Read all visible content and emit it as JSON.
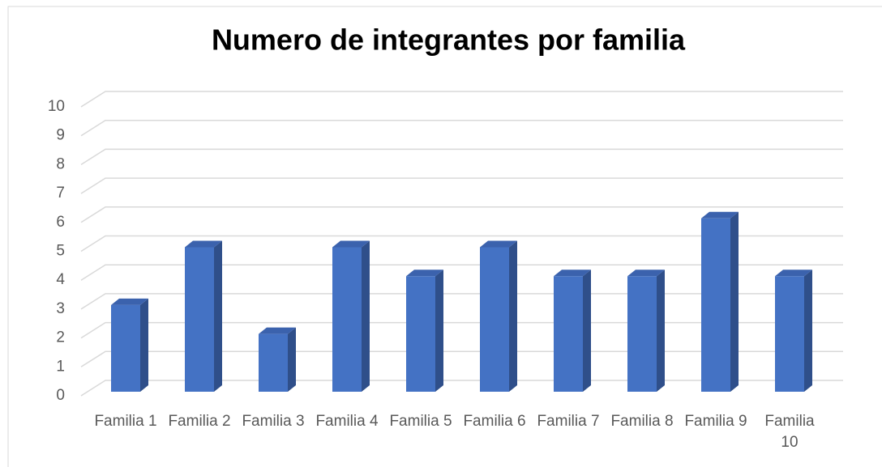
{
  "chart_data": {
    "type": "bar3d",
    "title": "Numero de integrantes por familia",
    "categories": [
      "Familia 1",
      "Familia 2",
      "Familia 3",
      "Familia 4",
      "Familia 5",
      "Familia 6",
      "Familia 7",
      "Familia 8",
      "Familia 9",
      "Familia 10"
    ],
    "values": [
      3,
      5,
      2,
      5,
      4,
      5,
      4,
      4,
      6,
      4
    ],
    "color": "#4472c4",
    "ylim": [
      0,
      10
    ],
    "yticks": [
      0,
      1,
      2,
      3,
      4,
      5,
      6,
      7,
      8,
      9,
      10
    ],
    "grid": true
  }
}
